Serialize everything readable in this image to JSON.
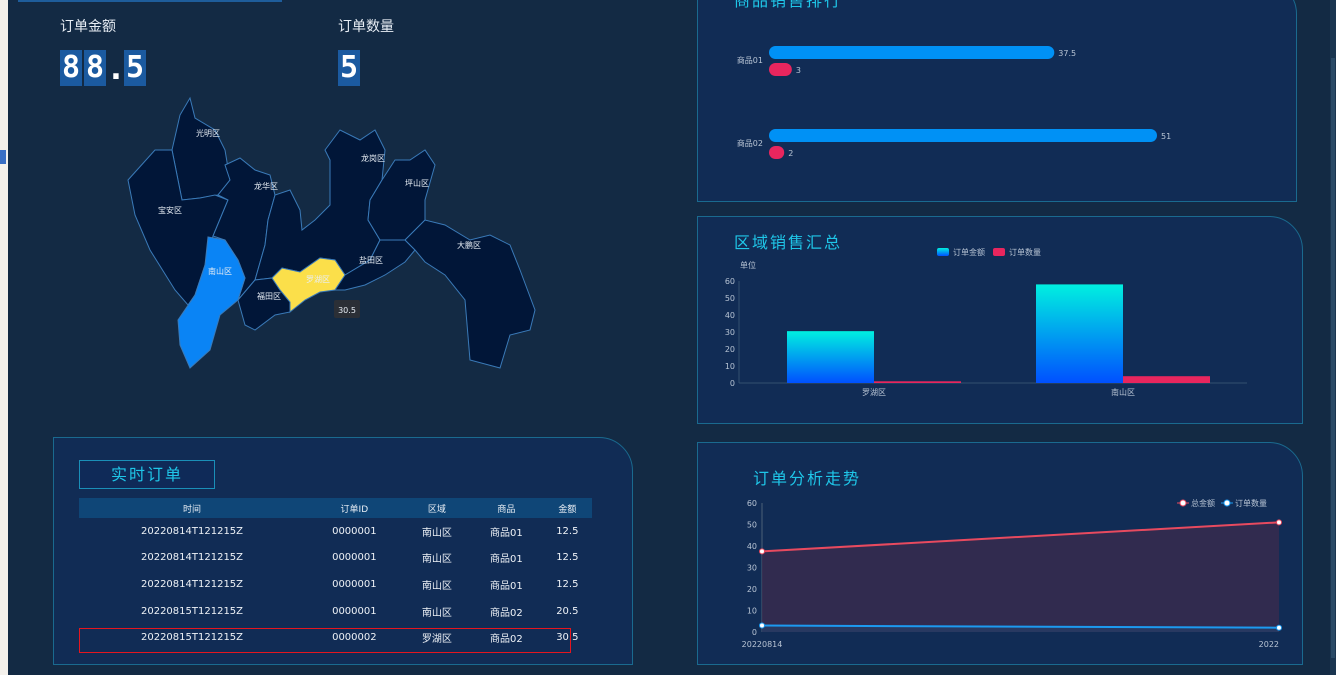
{
  "kpis": {
    "amount": {
      "label": "订单金额",
      "digits": [
        "8",
        "8",
        ".",
        "5"
      ]
    },
    "count": {
      "label": "订单数量",
      "digits": [
        "5"
      ]
    }
  },
  "map": {
    "districts": [
      "光明区",
      "宝安区",
      "龙华区",
      "龙岗区",
      "坪山区",
      "南山区",
      "福田区",
      "罗湖区",
      "盐田区",
      "大鹏区"
    ],
    "highlight": {
      "南山区": "#0a84f5",
      "罗湖区": "#fbdf4a"
    },
    "tooltip": "30.5"
  },
  "ranking": {
    "title": "商品销售排行",
    "chart_data": {
      "type": "bar",
      "orientation": "horizontal",
      "categories": [
        "商品01",
        "商品02"
      ],
      "series": [
        {
          "values": [
            37.5,
            51
          ],
          "color": "#0091f5"
        },
        {
          "values": [
            3,
            2
          ],
          "color": "#e8265e"
        }
      ],
      "xlim": [
        0,
        70
      ]
    }
  },
  "region": {
    "title": "区域销售汇总",
    "chart_data": {
      "type": "bar",
      "categories": [
        "罗湖区",
        "南山区"
      ],
      "ylabel": "单位",
      "ylim": [
        0,
        60
      ],
      "yticks": [
        "0",
        "10",
        "20",
        "30",
        "40",
        "50",
        "60"
      ],
      "legend": "top-center",
      "series": [
        {
          "name": "订单金额",
          "values": [
            30.5,
            58
          ],
          "color": "#00f0e0"
        },
        {
          "name": "订单数量",
          "values": [
            1,
            4
          ],
          "color": "#e8265e"
        }
      ]
    }
  },
  "trend": {
    "title": "订单分析走势",
    "chart_data": {
      "type": "line",
      "x": [
        "20220814",
        "2022"
      ],
      "ylim": [
        0,
        60
      ],
      "yticks": [
        "0",
        "10",
        "20",
        "30",
        "40",
        "50",
        "60"
      ],
      "legend": "top-right",
      "series": [
        {
          "name": "总金额",
          "values": [
            37.5,
            51
          ],
          "color": "#e84a5f"
        },
        {
          "name": "订单数量",
          "values": [
            3,
            2
          ],
          "color": "#1c9af0"
        }
      ]
    }
  },
  "orders": {
    "title": "实时订单",
    "columns": [
      "时间",
      "订单ID",
      "区域",
      "商品",
      "金额"
    ],
    "rows": [
      [
        "20220814T121215Z",
        "0000001",
        "南山区",
        "商品01",
        "12.5"
      ],
      [
        "20220814T121215Z",
        "0000001",
        "南山区",
        "商品01",
        "12.5"
      ],
      [
        "20220814T121215Z",
        "0000001",
        "南山区",
        "商品01",
        "12.5"
      ],
      [
        "20220815T121215Z",
        "0000001",
        "南山区",
        "商品02",
        "20.5"
      ],
      [
        "20220815T121215Z",
        "0000002",
        "罗湖区",
        "商品02",
        "30.5"
      ]
    ],
    "selected_row": 4
  }
}
